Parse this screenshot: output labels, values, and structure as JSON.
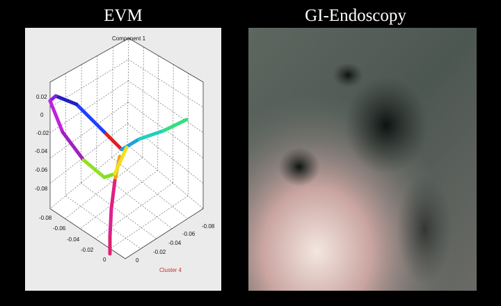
{
  "panels": [
    {
      "title": "EVM",
      "plot": {
        "top_label": "Component 1",
        "bottom_label": "Cluster 4",
        "left_ticks": [
          "0.02",
          "0",
          "-0.02",
          "-0.04",
          "-0.06",
          "-0.08"
        ],
        "lower_left_ticks": [
          "-0.08",
          "-0.06",
          "-0.04",
          "-0.02",
          "0"
        ],
        "lower_right_ticks": [
          "0",
          "-0.02",
          "-0.04",
          "-0.06",
          "-0.08"
        ]
      }
    },
    {
      "title": "GI-Endoscopy"
    }
  ]
}
